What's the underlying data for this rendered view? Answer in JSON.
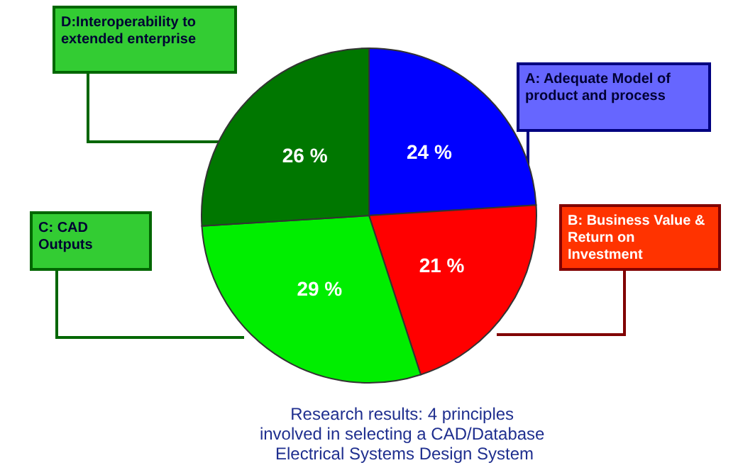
{
  "chart_data": {
    "type": "pie",
    "title": "Research results: 4 principles involved in selecting a CAD/Database Electrical Systems Design System",
    "categories": [
      "A: Adequate Model of product and process",
      "B: Business Value & Return on Investment",
      "C: CAD Outputs",
      "D:Interoperability to extended enterprise"
    ],
    "values": [
      24,
      21,
      29,
      26
    ],
    "colors": [
      "#0000ff",
      "#ff0000",
      "#00ee00",
      "#007700"
    ],
    "value_labels": [
      "24 %",
      "21 %",
      "29 %",
      "26 %"
    ]
  }
}
